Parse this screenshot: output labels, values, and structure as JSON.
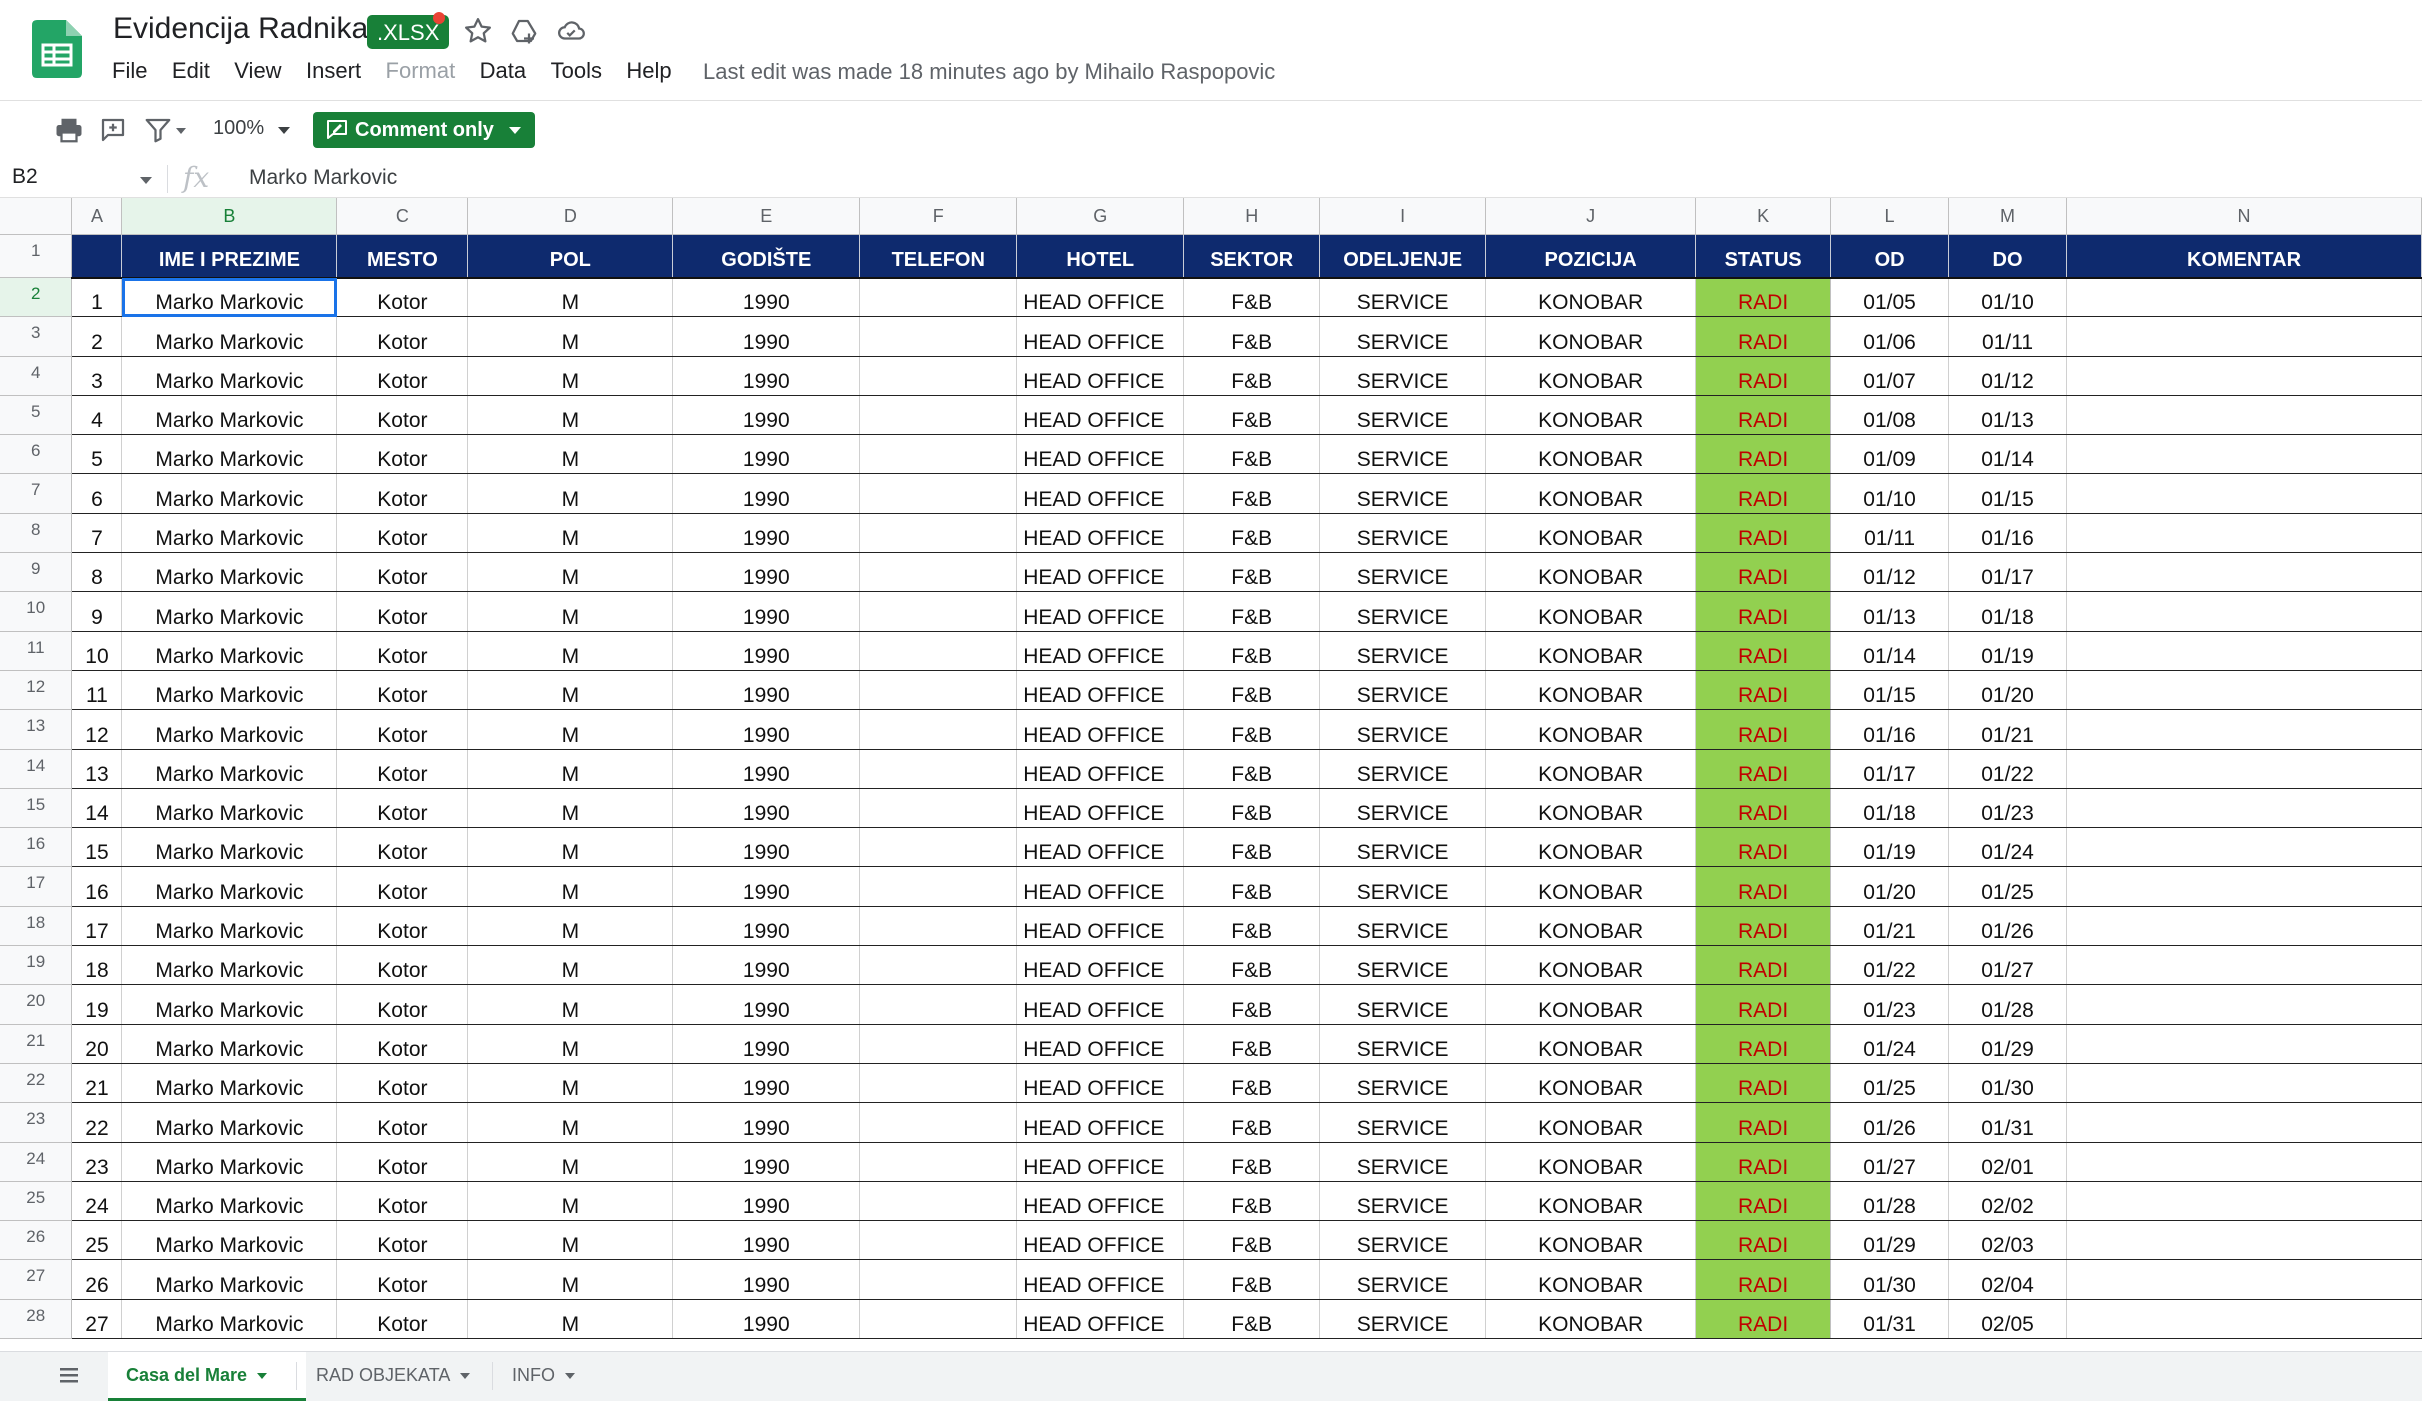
{
  "app": {
    "doc_title": "Evidencija Radnika",
    "file_badge": ".XLSX",
    "menu": [
      "File",
      "Edit",
      "View",
      "Insert",
      "Format",
      "Data",
      "Tools",
      "Help"
    ],
    "disabled_menu": [
      "Format"
    ],
    "last_edit": "Last edit was made 18 minutes ago by Mihailo Raspopovic",
    "icons": [
      "sheets-logo-icon",
      "star-icon",
      "move-to-drive-icon",
      "cloud-status-icon"
    ]
  },
  "toolbar": {
    "icons": [
      "print-icon",
      "add-comment-icon",
      "filter-icon"
    ],
    "zoom": "100%",
    "comment_only_label": "Comment only"
  },
  "formula_bar": {
    "name_box": "B2",
    "fx": "fx",
    "value": "Marko Markovic"
  },
  "sheet": {
    "column_letters": [
      "A",
      "B",
      "C",
      "D",
      "E",
      "F",
      "G",
      "H",
      "I",
      "J",
      "K",
      "L",
      "M",
      "N"
    ],
    "active_column": "B",
    "active_row": 2,
    "headers": [
      "",
      "IME I PREZIME",
      "MESTO",
      "POL",
      "GODIŠTE",
      "TELEFON",
      "HOTEL",
      "SEKTOR",
      "ODELJENJE",
      "POZICIJA",
      "STATUS",
      "OD",
      "DO",
      "KOMENTAR"
    ],
    "rows": [
      [
        "1",
        "Marko Markovic",
        "Kotor",
        "M",
        "1990",
        "",
        "HEAD OFFICE",
        "F&B",
        "SERVICE",
        "KONOBAR",
        "RADI",
        "01/05",
        "01/10",
        ""
      ],
      [
        "2",
        "Marko Markovic",
        "Kotor",
        "M",
        "1990",
        "",
        "HEAD OFFICE",
        "F&B",
        "SERVICE",
        "KONOBAR",
        "RADI",
        "01/06",
        "01/11",
        ""
      ],
      [
        "3",
        "Marko Markovic",
        "Kotor",
        "M",
        "1990",
        "",
        "HEAD OFFICE",
        "F&B",
        "SERVICE",
        "KONOBAR",
        "RADI",
        "01/07",
        "01/12",
        ""
      ],
      [
        "4",
        "Marko Markovic",
        "Kotor",
        "M",
        "1990",
        "",
        "HEAD OFFICE",
        "F&B",
        "SERVICE",
        "KONOBAR",
        "RADI",
        "01/08",
        "01/13",
        ""
      ],
      [
        "5",
        "Marko Markovic",
        "Kotor",
        "M",
        "1990",
        "",
        "HEAD OFFICE",
        "F&B",
        "SERVICE",
        "KONOBAR",
        "RADI",
        "01/09",
        "01/14",
        ""
      ],
      [
        "6",
        "Marko Markovic",
        "Kotor",
        "M",
        "1990",
        "",
        "HEAD OFFICE",
        "F&B",
        "SERVICE",
        "KONOBAR",
        "RADI",
        "01/10",
        "01/15",
        ""
      ],
      [
        "7",
        "Marko Markovic",
        "Kotor",
        "M",
        "1990",
        "",
        "HEAD OFFICE",
        "F&B",
        "SERVICE",
        "KONOBAR",
        "RADI",
        "01/11",
        "01/16",
        ""
      ],
      [
        "8",
        "Marko Markovic",
        "Kotor",
        "M",
        "1990",
        "",
        "HEAD OFFICE",
        "F&B",
        "SERVICE",
        "KONOBAR",
        "RADI",
        "01/12",
        "01/17",
        ""
      ],
      [
        "9",
        "Marko Markovic",
        "Kotor",
        "M",
        "1990",
        "",
        "HEAD OFFICE",
        "F&B",
        "SERVICE",
        "KONOBAR",
        "RADI",
        "01/13",
        "01/18",
        ""
      ],
      [
        "10",
        "Marko Markovic",
        "Kotor",
        "M",
        "1990",
        "",
        "HEAD OFFICE",
        "F&B",
        "SERVICE",
        "KONOBAR",
        "RADI",
        "01/14",
        "01/19",
        ""
      ],
      [
        "11",
        "Marko Markovic",
        "Kotor",
        "M",
        "1990",
        "",
        "HEAD OFFICE",
        "F&B",
        "SERVICE",
        "KONOBAR",
        "RADI",
        "01/15",
        "01/20",
        ""
      ],
      [
        "12",
        "Marko Markovic",
        "Kotor",
        "M",
        "1990",
        "",
        "HEAD OFFICE",
        "F&B",
        "SERVICE",
        "KONOBAR",
        "RADI",
        "01/16",
        "01/21",
        ""
      ],
      [
        "13",
        "Marko Markovic",
        "Kotor",
        "M",
        "1990",
        "",
        "HEAD OFFICE",
        "F&B",
        "SERVICE",
        "KONOBAR",
        "RADI",
        "01/17",
        "01/22",
        ""
      ],
      [
        "14",
        "Marko Markovic",
        "Kotor",
        "M",
        "1990",
        "",
        "HEAD OFFICE",
        "F&B",
        "SERVICE",
        "KONOBAR",
        "RADI",
        "01/18",
        "01/23",
        ""
      ],
      [
        "15",
        "Marko Markovic",
        "Kotor",
        "M",
        "1990",
        "",
        "HEAD OFFICE",
        "F&B",
        "SERVICE",
        "KONOBAR",
        "RADI",
        "01/19",
        "01/24",
        ""
      ],
      [
        "16",
        "Marko Markovic",
        "Kotor",
        "M",
        "1990",
        "",
        "HEAD OFFICE",
        "F&B",
        "SERVICE",
        "KONOBAR",
        "RADI",
        "01/20",
        "01/25",
        ""
      ],
      [
        "17",
        "Marko Markovic",
        "Kotor",
        "M",
        "1990",
        "",
        "HEAD OFFICE",
        "F&B",
        "SERVICE",
        "KONOBAR",
        "RADI",
        "01/21",
        "01/26",
        ""
      ],
      [
        "18",
        "Marko Markovic",
        "Kotor",
        "M",
        "1990",
        "",
        "HEAD OFFICE",
        "F&B",
        "SERVICE",
        "KONOBAR",
        "RADI",
        "01/22",
        "01/27",
        ""
      ],
      [
        "19",
        "Marko Markovic",
        "Kotor",
        "M",
        "1990",
        "",
        "HEAD OFFICE",
        "F&B",
        "SERVICE",
        "KONOBAR",
        "RADI",
        "01/23",
        "01/28",
        ""
      ],
      [
        "20",
        "Marko Markovic",
        "Kotor",
        "M",
        "1990",
        "",
        "HEAD OFFICE",
        "F&B",
        "SERVICE",
        "KONOBAR",
        "RADI",
        "01/24",
        "01/29",
        ""
      ],
      [
        "21",
        "Marko Markovic",
        "Kotor",
        "M",
        "1990",
        "",
        "HEAD OFFICE",
        "F&B",
        "SERVICE",
        "KONOBAR",
        "RADI",
        "01/25",
        "01/30",
        ""
      ],
      [
        "22",
        "Marko Markovic",
        "Kotor",
        "M",
        "1990",
        "",
        "HEAD OFFICE",
        "F&B",
        "SERVICE",
        "KONOBAR",
        "RADI",
        "01/26",
        "01/31",
        ""
      ],
      [
        "23",
        "Marko Markovic",
        "Kotor",
        "M",
        "1990",
        "",
        "HEAD OFFICE",
        "F&B",
        "SERVICE",
        "KONOBAR",
        "RADI",
        "01/27",
        "02/01",
        ""
      ],
      [
        "24",
        "Marko Markovic",
        "Kotor",
        "M",
        "1990",
        "",
        "HEAD OFFICE",
        "F&B",
        "SERVICE",
        "KONOBAR",
        "RADI",
        "01/28",
        "02/02",
        ""
      ],
      [
        "25",
        "Marko Markovic",
        "Kotor",
        "M",
        "1990",
        "",
        "HEAD OFFICE",
        "F&B",
        "SERVICE",
        "KONOBAR",
        "RADI",
        "01/29",
        "02/03",
        ""
      ],
      [
        "26",
        "Marko Markovic",
        "Kotor",
        "M",
        "1990",
        "",
        "HEAD OFFICE",
        "F&B",
        "SERVICE",
        "KONOBAR",
        "RADI",
        "01/30",
        "02/04",
        ""
      ],
      [
        "27",
        "Marko Markovic",
        "Kotor",
        "M",
        "1990",
        "",
        "HEAD OFFICE",
        "F&B",
        "SERVICE",
        "KONOBAR",
        "RADI",
        "01/31",
        "02/05",
        ""
      ]
    ]
  },
  "sheet_tabs": [
    {
      "label": "Casa del Mare",
      "active": true
    },
    {
      "label": "RAD OBJEKATA",
      "active": false
    },
    {
      "label": "INFO",
      "active": false
    }
  ],
  "colors": {
    "brand_green": "#188038",
    "header_navy": "#0e2a6e",
    "status_fill": "#92d050",
    "status_text": "#c00000",
    "selection_blue": "#1a73e8"
  }
}
